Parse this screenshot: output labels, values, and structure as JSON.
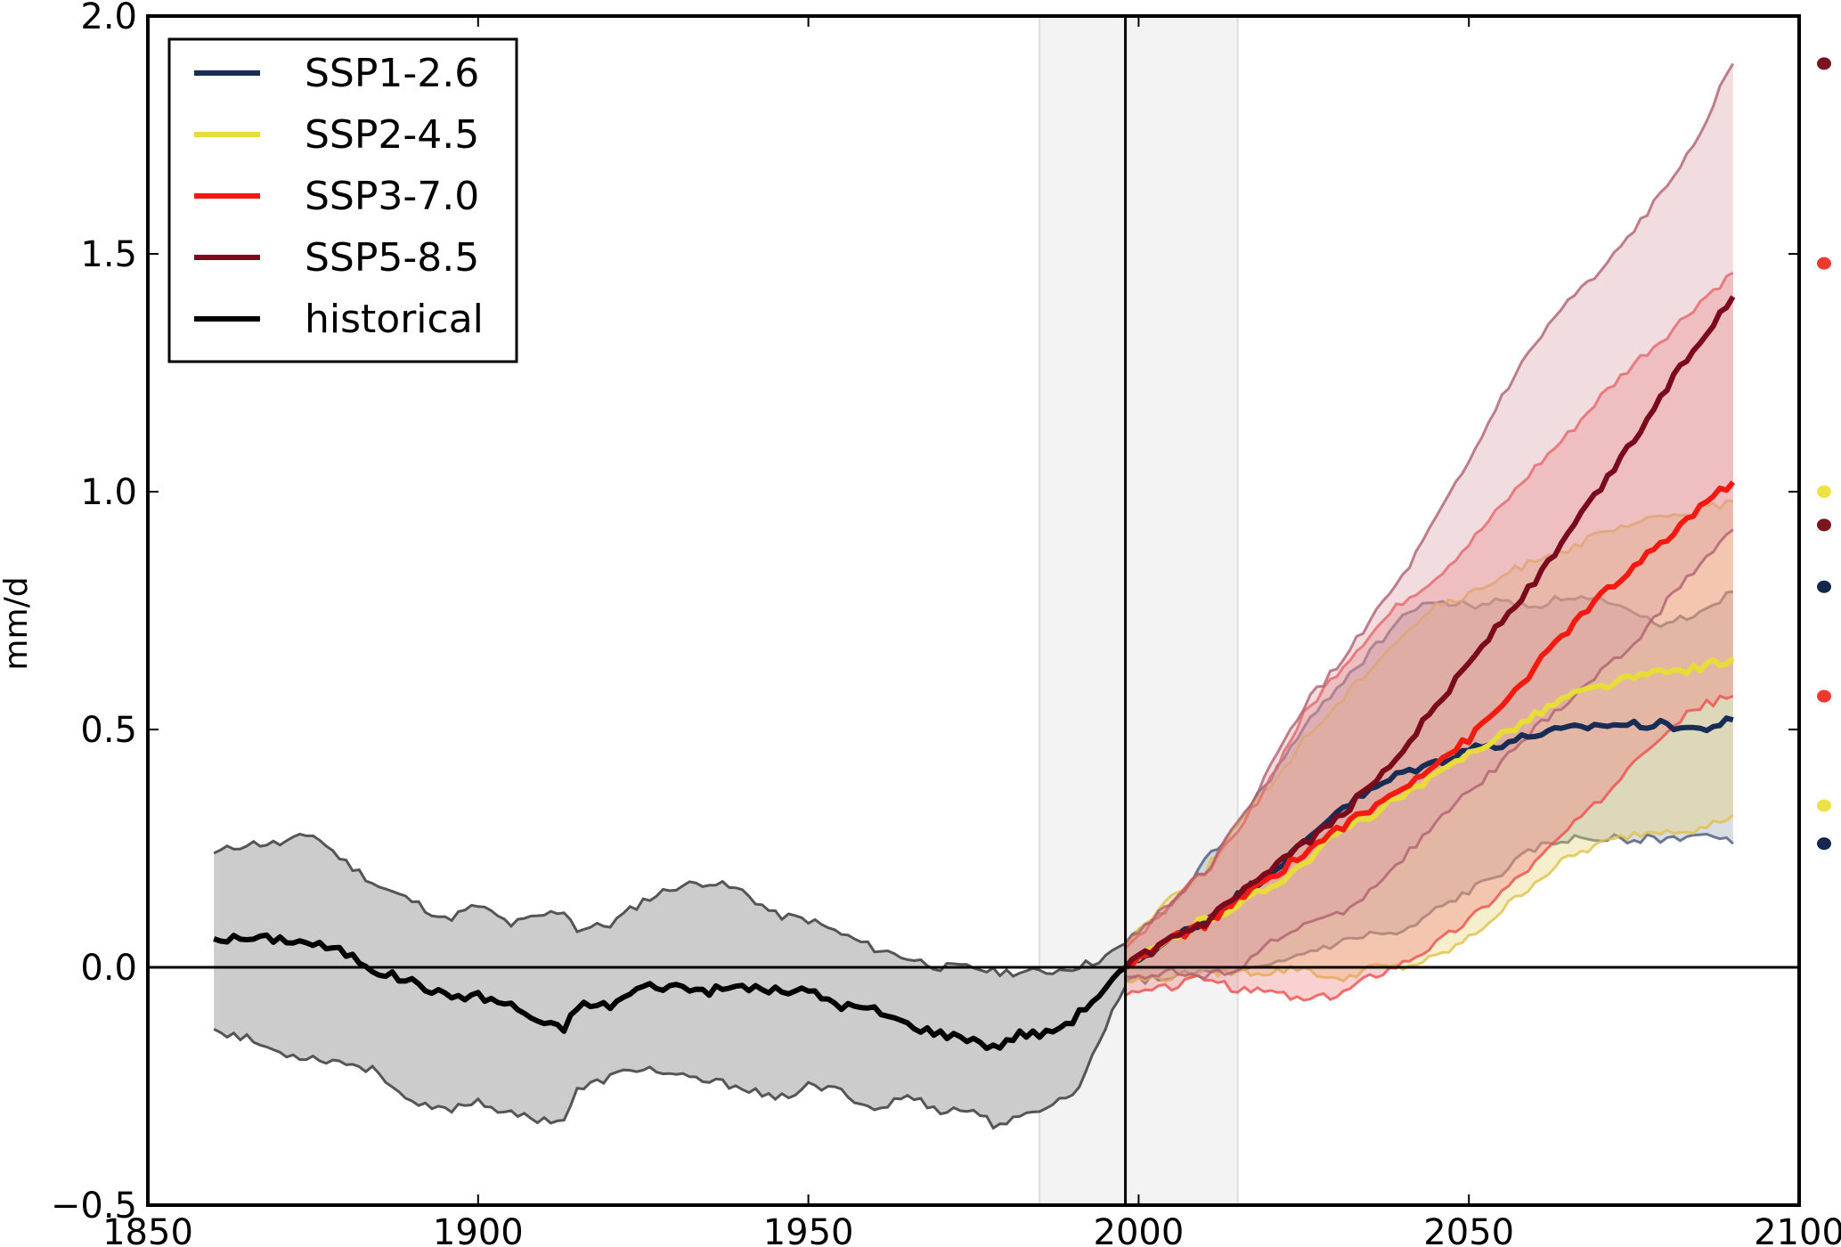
{
  "chart_data": {
    "type": "line",
    "title": "",
    "xlabel": "",
    "ylabel": "mm/d",
    "xlim": [
      1850,
      2100
    ],
    "ylim": [
      -0.5,
      2.0
    ],
    "xticks": [
      "1850",
      "1900",
      "1950",
      "2000",
      "2050",
      "2100"
    ],
    "yticks": [
      "−0.5",
      "0.0",
      "0.5",
      "1.0",
      "1.5",
      "2.0"
    ],
    "grid": false,
    "legend_position": "top-left",
    "reference_lines": {
      "horizontal_y": 0.0,
      "vertical_x": 1998
    },
    "shaded_period": [
      1985,
      2015
    ],
    "series": [
      {
        "name": "historical",
        "color": "#000000",
        "band_fill": "#cccccc",
        "band_edge": "#555555",
        "x": [
          1860,
          1865,
          1870,
          1875,
          1880,
          1885,
          1890,
          1895,
          1900,
          1905,
          1910,
          1913,
          1915,
          1920,
          1925,
          1930,
          1935,
          1940,
          1945,
          1950,
          1955,
          1960,
          1965,
          1970,
          1975,
          1978,
          1982,
          1986,
          1990,
          1993,
          1996,
          1998
        ],
        "mean": [
          0.06,
          0.06,
          0.06,
          0.05,
          0.03,
          -0.01,
          -0.03,
          -0.06,
          -0.06,
          -0.08,
          -0.12,
          -0.13,
          -0.08,
          -0.08,
          -0.04,
          -0.04,
          -0.05,
          -0.04,
          -0.05,
          -0.05,
          -0.08,
          -0.09,
          -0.12,
          -0.14,
          -0.15,
          -0.17,
          -0.14,
          -0.14,
          -0.11,
          -0.07,
          -0.03,
          0.0
        ],
        "low": [
          -0.13,
          -0.15,
          -0.18,
          -0.19,
          -0.2,
          -0.22,
          -0.29,
          -0.3,
          -0.28,
          -0.31,
          -0.32,
          -0.32,
          -0.26,
          -0.23,
          -0.21,
          -0.23,
          -0.24,
          -0.25,
          -0.28,
          -0.25,
          -0.26,
          -0.3,
          -0.27,
          -0.3,
          -0.3,
          -0.33,
          -0.32,
          -0.29,
          -0.27,
          -0.19,
          -0.09,
          -0.04
        ],
        "high": [
          0.24,
          0.26,
          0.26,
          0.28,
          0.22,
          0.17,
          0.14,
          0.1,
          0.13,
          0.09,
          0.11,
          0.12,
          0.08,
          0.09,
          0.14,
          0.17,
          0.18,
          0.16,
          0.11,
          0.1,
          0.07,
          0.04,
          0.02,
          0.0,
          0.0,
          -0.01,
          -0.01,
          -0.01,
          0.0,
          0.01,
          0.03,
          0.05
        ]
      },
      {
        "name": "SSP1-2.6",
        "color": "#172d55",
        "band_fill": "#8e9bb3",
        "band_edge": "#4b5a75",
        "x": [
          1998,
          2005,
          2010,
          2015,
          2020,
          2025,
          2030,
          2035,
          2040,
          2045,
          2050,
          2055,
          2060,
          2065,
          2070,
          2075,
          2080,
          2085,
          2090
        ],
        "mean": [
          0.0,
          0.06,
          0.1,
          0.15,
          0.2,
          0.26,
          0.33,
          0.37,
          0.41,
          0.43,
          0.46,
          0.47,
          0.49,
          0.5,
          0.51,
          0.51,
          0.51,
          0.5,
          0.52
        ],
        "low": [
          -0.03,
          -0.02,
          -0.01,
          -0.01,
          0.0,
          0.03,
          0.05,
          0.07,
          0.07,
          0.12,
          0.16,
          0.2,
          0.25,
          0.27,
          0.27,
          0.27,
          0.27,
          0.28,
          0.26
        ],
        "high": [
          0.05,
          0.13,
          0.22,
          0.3,
          0.4,
          0.5,
          0.59,
          0.66,
          0.74,
          0.77,
          0.76,
          0.77,
          0.76,
          0.78,
          0.77,
          0.74,
          0.72,
          0.75,
          0.79
        ]
      },
      {
        "name": "SSP2-4.5",
        "color": "#e8dc39",
        "band_fill": "#e6d26b",
        "band_edge": "#e0c24a",
        "x": [
          1998,
          2005,
          2010,
          2015,
          2020,
          2025,
          2030,
          2035,
          2040,
          2045,
          2050,
          2055,
          2060,
          2065,
          2070,
          2075,
          2080,
          2085,
          2090
        ],
        "mean": [
          0.0,
          0.06,
          0.1,
          0.13,
          0.17,
          0.22,
          0.28,
          0.32,
          0.36,
          0.4,
          0.45,
          0.49,
          0.53,
          0.57,
          0.59,
          0.61,
          0.62,
          0.63,
          0.65
        ],
        "low": [
          -0.03,
          -0.02,
          -0.01,
          -0.01,
          -0.01,
          0.0,
          -0.03,
          0.0,
          0.0,
          0.02,
          0.06,
          0.12,
          0.18,
          0.23,
          0.26,
          0.28,
          0.29,
          0.29,
          0.32
        ],
        "high": [
          0.05,
          0.15,
          0.2,
          0.3,
          0.38,
          0.48,
          0.55,
          0.63,
          0.7,
          0.76,
          0.78,
          0.82,
          0.86,
          0.88,
          0.91,
          0.93,
          0.95,
          0.96,
          0.98
        ]
      },
      {
        "name": "SSP3-7.0",
        "color": "#f41a12",
        "band_fill": "#f07a7a",
        "band_edge": "#ee4e4e",
        "x": [
          1998,
          2005,
          2010,
          2015,
          2020,
          2025,
          2030,
          2035,
          2040,
          2045,
          2050,
          2055,
          2060,
          2065,
          2070,
          2075,
          2080,
          2085,
          2090
        ],
        "mean": [
          0.0,
          0.06,
          0.09,
          0.14,
          0.19,
          0.24,
          0.29,
          0.33,
          0.38,
          0.43,
          0.48,
          0.55,
          0.63,
          0.71,
          0.78,
          0.84,
          0.9,
          0.97,
          1.02
        ],
        "low": [
          -0.06,
          -0.04,
          -0.02,
          -0.05,
          -0.05,
          -0.07,
          -0.06,
          -0.02,
          0.01,
          0.05,
          0.1,
          0.16,
          0.22,
          0.29,
          0.35,
          0.44,
          0.5,
          0.55,
          0.57
        ],
        "high": [
          0.04,
          0.14,
          0.2,
          0.28,
          0.4,
          0.53,
          0.62,
          0.7,
          0.77,
          0.82,
          0.89,
          0.97,
          1.05,
          1.12,
          1.2,
          1.27,
          1.33,
          1.4,
          1.46
        ]
      },
      {
        "name": "SSP5-8.5",
        "color": "#7a0a1c",
        "band_fill": "#d89aa3",
        "band_edge": "#b06070",
        "x": [
          1998,
          2005,
          2010,
          2015,
          2020,
          2025,
          2030,
          2035,
          2040,
          2045,
          2050,
          2055,
          2060,
          2065,
          2070,
          2075,
          2080,
          2085,
          2090
        ],
        "mean": [
          0.0,
          0.06,
          0.09,
          0.15,
          0.2,
          0.26,
          0.31,
          0.38,
          0.46,
          0.55,
          0.64,
          0.73,
          0.81,
          0.91,
          1.01,
          1.11,
          1.22,
          1.32,
          1.41
        ],
        "low": [
          -0.02,
          -0.01,
          -0.02,
          0.0,
          0.05,
          0.09,
          0.11,
          0.16,
          0.23,
          0.3,
          0.37,
          0.43,
          0.5,
          0.56,
          0.62,
          0.68,
          0.77,
          0.85,
          0.92
        ],
        "high": [
          0.05,
          0.14,
          0.2,
          0.3,
          0.42,
          0.55,
          0.63,
          0.73,
          0.82,
          0.94,
          1.06,
          1.2,
          1.31,
          1.4,
          1.46,
          1.55,
          1.64,
          1.76,
          1.9
        ]
      }
    ],
    "legend": [
      {
        "label": "SSP1-2.6",
        "color": "#172d55"
      },
      {
        "label": "SSP2-4.5",
        "color": "#e8dc39"
      },
      {
        "label": "SSP3-7.0",
        "color": "#f41a12"
      },
      {
        "label": "SSP5-8.5",
        "color": "#7a0a1c"
      },
      {
        "label": "historical",
        "color": "#000000"
      }
    ],
    "side_markers": [
      {
        "scenario": "SSP5-8.5",
        "value": 1.9,
        "color": "#7a1520"
      },
      {
        "scenario": "SSP3-7.0",
        "value": 1.48,
        "color": "#ee3a2e"
      },
      {
        "scenario": "SSP2-4.5",
        "value": 1.0,
        "color": "#ece245"
      },
      {
        "scenario": "SSP5-8.5",
        "value": 0.93,
        "color": "#7a1520"
      },
      {
        "scenario": "SSP1-2.6",
        "value": 0.8,
        "color": "#14284f"
      },
      {
        "scenario": "SSP3-7.0",
        "value": 0.57,
        "color": "#ee3a2e"
      },
      {
        "scenario": "SSP2-4.5",
        "value": 0.34,
        "color": "#ece245"
      },
      {
        "scenario": "SSP1-2.6",
        "value": 0.26,
        "color": "#14284f"
      }
    ]
  }
}
